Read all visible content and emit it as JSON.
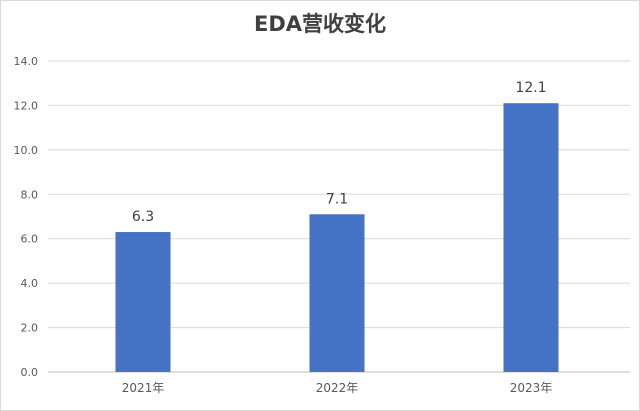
{
  "chart_data": {
    "type": "bar",
    "title": "EDA营收变化",
    "categories": [
      "2021年",
      "2022年",
      "2023年"
    ],
    "values": [
      6.3,
      7.1,
      12.1
    ],
    "data_labels": [
      "6.3",
      "7.1",
      "12.1"
    ],
    "yticks": [
      "0.0",
      "2.0",
      "4.0",
      "6.0",
      "8.0",
      "10.0",
      "12.0",
      "14.0"
    ],
    "ylim": [
      0,
      14
    ],
    "ystep": 2,
    "xlabel": "",
    "ylabel": "",
    "grid": true,
    "legend": "none",
    "bar_color": "#4472C4",
    "grid_color": "#d9d9d9"
  }
}
